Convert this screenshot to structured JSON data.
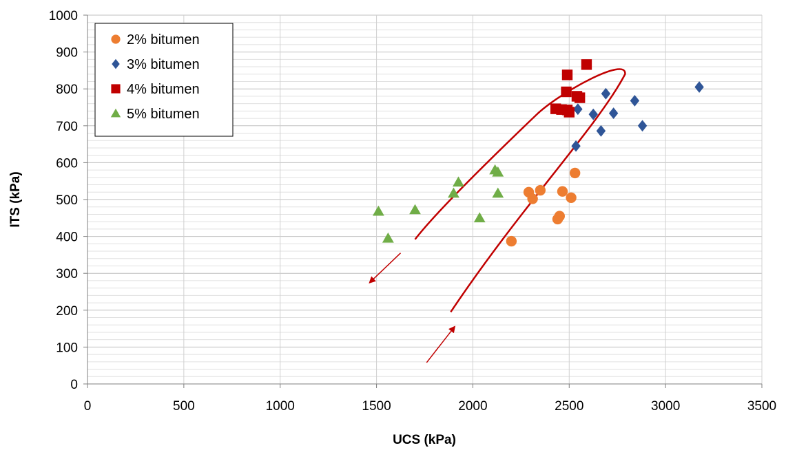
{
  "chart_data": {
    "type": "scatter",
    "xlabel": "UCS (kPa)",
    "ylabel": "ITS (kPa)",
    "xlim": [
      0,
      3500
    ],
    "ylim": [
      0,
      1000
    ],
    "xticks": [
      "0",
      "500",
      "1000",
      "1500",
      "2000",
      "2500",
      "3000",
      "3500"
    ],
    "yticks": [
      "0",
      "100",
      "200",
      "300",
      "400",
      "500",
      "600",
      "700",
      "800",
      "900",
      "1000"
    ],
    "grid": true,
    "legend_position": "top-left",
    "series": [
      {
        "name": "2% bitumen",
        "marker": "circle",
        "color": "#ED7D31",
        "points": [
          [
            2200,
            387
          ],
          [
            2290,
            520
          ],
          [
            2310,
            502
          ],
          [
            2350,
            525
          ],
          [
            2440,
            447
          ],
          [
            2450,
            455
          ],
          [
            2465,
            522
          ],
          [
            2510,
            505
          ],
          [
            2530,
            572
          ]
        ]
      },
      {
        "name": "3% bitumen",
        "marker": "diamond",
        "color": "#2F5597",
        "points": [
          [
            2535,
            645
          ],
          [
            2545,
            745
          ],
          [
            2625,
            731
          ],
          [
            2665,
            686
          ],
          [
            2690,
            787
          ],
          [
            2730,
            734
          ],
          [
            2840,
            768
          ],
          [
            2880,
            700
          ],
          [
            3175,
            805
          ]
        ]
      },
      {
        "name": "4% bitumen",
        "marker": "square",
        "color": "#C00000",
        "points": [
          [
            2430,
            746
          ],
          [
            2460,
            744
          ],
          [
            2490,
            743
          ],
          [
            2500,
            737
          ],
          [
            2485,
            792
          ],
          [
            2490,
            838
          ],
          [
            2540,
            780
          ],
          [
            2555,
            776
          ],
          [
            2590,
            866
          ]
        ]
      },
      {
        "name": "5% bitumen",
        "marker": "triangle",
        "color": "#70AD47",
        "points": [
          [
            1510,
            468
          ],
          [
            1560,
            395
          ],
          [
            1700,
            472
          ],
          [
            1900,
            517
          ],
          [
            1925,
            547
          ],
          [
            2035,
            450
          ],
          [
            2115,
            580
          ],
          [
            2130,
            574
          ],
          [
            2130,
            517
          ]
        ]
      }
    ],
    "annotations": {
      "ellipse": {
        "color": "#C00000",
        "start": [
          1885,
          195
        ],
        "end": [
          1700,
          392
        ]
      },
      "arrows": [
        {
          "from": [
            1625,
            355
          ],
          "to": [
            1465,
            275
          ],
          "color": "#C00000"
        },
        {
          "from": [
            1760,
            58
          ],
          "to": [
            1905,
            155
          ],
          "color": "#C00000"
        }
      ]
    }
  }
}
